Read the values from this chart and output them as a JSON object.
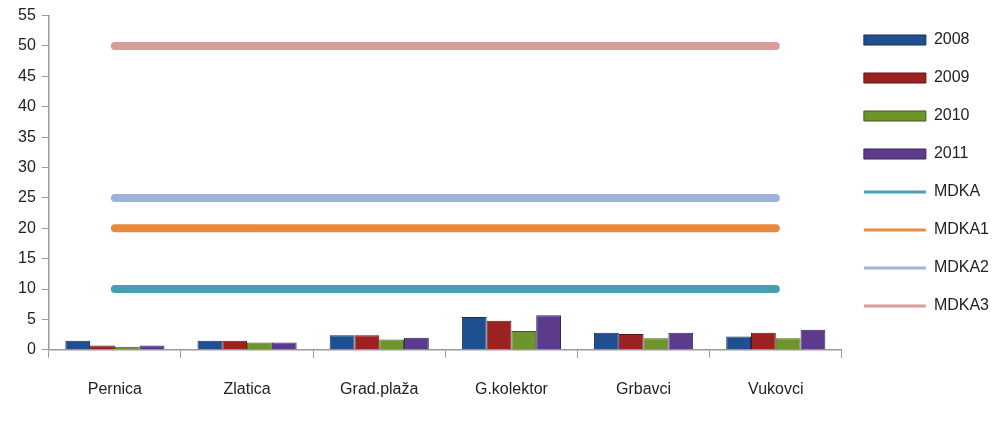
{
  "chart_data": {
    "type": "bar",
    "categories": [
      "Pernica",
      "Zlatica",
      "Grad.plaža",
      "G.kolektor",
      "Grbavci",
      "Vukovci"
    ],
    "series": [
      {
        "name": "2008",
        "color": "#1f4f8f",
        "values": [
          1.5,
          1.5,
          2.4,
          5.4,
          2.8,
          2.2
        ]
      },
      {
        "name": "2009",
        "color": "#9c2222",
        "values": [
          0.7,
          1.5,
          2.4,
          4.8,
          2.6,
          2.8
        ]
      },
      {
        "name": "2010",
        "color": "#6e952c",
        "values": [
          0.5,
          1.2,
          1.7,
          3.1,
          1.9,
          1.9
        ]
      },
      {
        "name": "2011",
        "color": "#5c3a8c",
        "values": [
          0.7,
          1.2,
          2.0,
          5.7,
          2.8,
          3.3
        ]
      },
      {
        "name": "MDKA",
        "type": "line",
        "color": "#45a0b6",
        "values": [
          10,
          10,
          10,
          10,
          10,
          10
        ]
      },
      {
        "name": "MDKA1",
        "type": "line",
        "color": "#e88a3e",
        "values": [
          20,
          20,
          20,
          20,
          20,
          20
        ]
      },
      {
        "name": "MDKA2",
        "type": "line",
        "color": "#9db3dc",
        "values": [
          25,
          25,
          25,
          25,
          25,
          25
        ]
      },
      {
        "name": "MDKA3",
        "type": "line",
        "color": "#d99c9a",
        "values": [
          50,
          50,
          50,
          50,
          50,
          50
        ]
      }
    ],
    "ylim": [
      0,
      55
    ],
    "yticks": [
      0,
      5,
      10,
      15,
      20,
      25,
      30,
      35,
      40,
      45,
      50,
      55
    ],
    "grid": false,
    "legend": "top right",
    "marker": "none"
  }
}
